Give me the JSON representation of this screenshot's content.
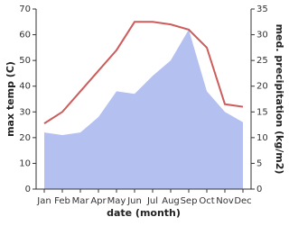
{
  "chart_data": {
    "type": "line",
    "x_label": "date (month)",
    "y_label": "max temp (C)",
    "y2_label": "med. precipitation (kg/m2)",
    "categories": [
      "Jan",
      "Feb",
      "Mar",
      "Apr",
      "May",
      "Jun",
      "Jul",
      "Aug",
      "Sep",
      "Oct",
      "Nov",
      "Dec"
    ],
    "series": [
      {
        "name": "max temp",
        "color": "#cd5c5c",
        "values": [
          25.5,
          30,
          38,
          46,
          54,
          65,
          65,
          64,
          62,
          55,
          33,
          32
        ]
      },
      {
        "name": "med. precipitation",
        "color": "#b4c0f0",
        "axis": "y2",
        "values": [
          11,
          10.5,
          11,
          14,
          19,
          18.5,
          22,
          25,
          31,
          19,
          15,
          13
        ]
      }
    ],
    "ylim": [
      0,
      70
    ],
    "yticks": [
      0,
      10,
      20,
      30,
      40,
      50,
      60,
      70
    ],
    "y2lim": [
      0,
      35
    ],
    "y2ticks": [
      0,
      5,
      10,
      15,
      20,
      25,
      30,
      35
    ]
  }
}
